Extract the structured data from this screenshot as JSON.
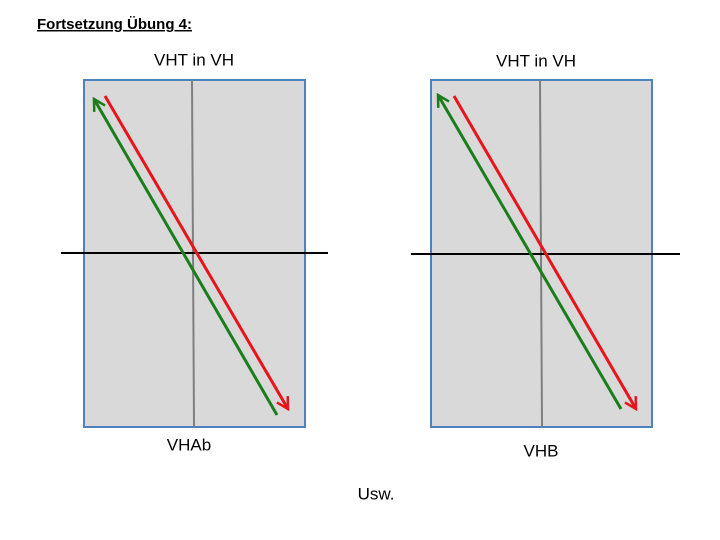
{
  "title": "Fortsetzung Übung 4:",
  "panels": [
    {
      "top_label": "VHT in VH",
      "bottom_label": "VHAb"
    },
    {
      "top_label": "VHT in VH",
      "bottom_label": "VHB"
    }
  ],
  "footer": "Usw."
}
